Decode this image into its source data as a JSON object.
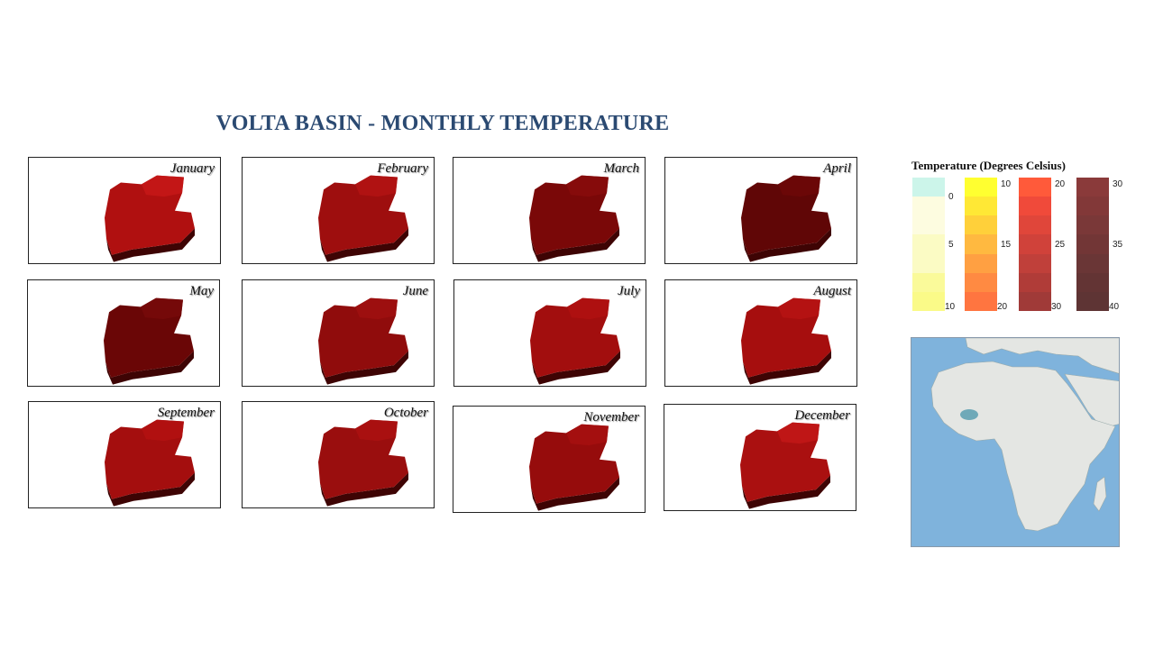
{
  "title": "VOLTA BASIN - MONTHLY TEMPERATURE",
  "months": [
    {
      "name": "January",
      "shade": "#b01010",
      "top": "#c81818"
    },
    {
      "name": "February",
      "shade": "#9e0e0e",
      "top": "#b41414"
    },
    {
      "name": "March",
      "shade": "#7a0808",
      "top": "#8a0c0c"
    },
    {
      "name": "April",
      "shade": "#600606",
      "top": "#6e0808"
    },
    {
      "name": "May",
      "shade": "#6a0606",
      "top": "#780a0a"
    },
    {
      "name": "June",
      "shade": "#900c0c",
      "top": "#a01010"
    },
    {
      "name": "July",
      "shade": "#a20e0e",
      "top": "#b21212"
    },
    {
      "name": "August",
      "shade": "#a60e0e",
      "top": "#b81414"
    },
    {
      "name": "September",
      "shade": "#a40e0e",
      "top": "#b41212"
    },
    {
      "name": "October",
      "shade": "#9a0e0e",
      "top": "#ac1212"
    },
    {
      "name": "November",
      "shade": "#960c0c",
      "top": "#a81010"
    },
    {
      "name": "December",
      "shade": "#aa1010",
      "top": "#c41818"
    }
  ],
  "legend": {
    "title": "Temperature (Degrees Celsius)",
    "bars": [
      {
        "colors": [
          "#ccf5ea",
          "#fdfce0",
          "#fdfce0",
          "#fbfbc4",
          "#fbfbc4",
          "#fafa9a",
          "#fafa88"
        ],
        "ticks": [
          {
            "label": "0",
            "pos": "top"
          },
          {
            "label": "5",
            "pos": "mid"
          },
          {
            "label": "10",
            "pos": "bottom"
          }
        ]
      },
      {
        "colors": [
          "#ffff30",
          "#ffe835",
          "#ffd03a",
          "#ffb940",
          "#ffa042",
          "#ff8a42",
          "#ff7540"
        ],
        "ticks": [
          {
            "label": "10",
            "pos": "top"
          },
          {
            "label": "15",
            "pos": "mid"
          },
          {
            "label": "20",
            "pos": "bottom"
          }
        ]
      },
      {
        "colors": [
          "#ff5a3a",
          "#f04a3a",
          "#e0463a",
          "#d0423a",
          "#c0403a",
          "#b03c38",
          "#a03a38"
        ],
        "ticks": [
          {
            "label": "20",
            "pos": "top"
          },
          {
            "label": "25",
            "pos": "mid"
          },
          {
            "label": "30",
            "pos": "bottom"
          }
        ]
      },
      {
        "colors": [
          "#8a3a3a",
          "#823838",
          "#7a3838",
          "#723636",
          "#6a3636",
          "#633434",
          "#5e3434"
        ],
        "ticks": [
          {
            "label": "30",
            "pos": "top"
          },
          {
            "label": "35",
            "pos": "mid"
          },
          {
            "label": "40",
            "pos": "bottom"
          }
        ]
      }
    ]
  },
  "inset": {
    "ocean": "#7fb3dc",
    "land": "#e4e6e3",
    "basin": "#6fa9b8"
  }
}
